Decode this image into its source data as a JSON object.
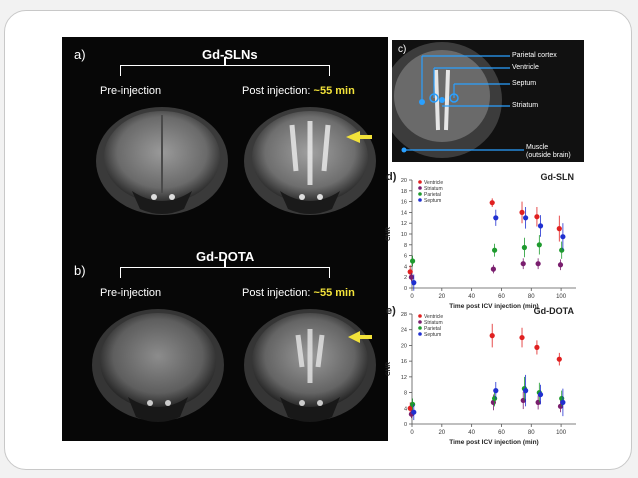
{
  "panel_a": {
    "label": "a)",
    "title": "Gd-SLNs",
    "pre": "Pre-injection",
    "post_prefix": "Post injection: ",
    "post_time": "~55 min"
  },
  "panel_b": {
    "label": "b)",
    "title": "Gd-DOTA",
    "pre": "Pre-injection",
    "post_prefix": "Post injection: ",
    "post_time": "~55 min"
  },
  "panel_c": {
    "label": "c)",
    "regions": [
      "Parietal cortex",
      "Ventricle",
      "Septum",
      "Striatum",
      "Muscle",
      "(outside brain)"
    ]
  },
  "colors": {
    "ventricle": "#e02020",
    "striatum": "#7a1e6e",
    "parietal": "#1e9a2e",
    "septum": "#2030d0",
    "arrow": "#f2e23a"
  },
  "chart_data": [
    {
      "type": "scatter",
      "panel": "d)",
      "title": "Gd-SLN",
      "xlabel": "Time post ICV injection (min)",
      "ylabel": "CNR",
      "xlim": [
        0,
        110
      ],
      "ylim": [
        0,
        20
      ],
      "xticks": [
        0,
        20,
        40,
        60,
        80,
        100
      ],
      "yticks": [
        0,
        2,
        4,
        6,
        8,
        10,
        12,
        14,
        16,
        18,
        20
      ],
      "series": [
        {
          "name": "Ventricle",
          "color": "#e02020",
          "x": [
            0,
            55,
            75,
            85,
            100
          ],
          "y": [
            3.0,
            15.8,
            14.0,
            13.2,
            11.0
          ],
          "err": [
            1.2,
            0.8,
            2.0,
            1.8,
            2.4
          ]
        },
        {
          "name": "Striatum",
          "color": "#7a1e6e",
          "x": [
            0,
            55,
            75,
            85,
            100
          ],
          "y": [
            2.0,
            3.5,
            4.5,
            4.5,
            4.3
          ],
          "err": [
            0.8,
            0.8,
            1.0,
            1.0,
            1.0
          ]
        },
        {
          "name": "Parietal",
          "color": "#1e9a2e",
          "x": [
            0,
            55,
            75,
            85,
            100
          ],
          "y": [
            5.0,
            7.0,
            7.5,
            8.0,
            7.0
          ],
          "err": [
            1.0,
            1.2,
            1.8,
            1.8,
            1.6
          ]
        },
        {
          "name": "Septum",
          "color": "#2030d0",
          "x": [
            0,
            55,
            75,
            85,
            100
          ],
          "y": [
            1.0,
            13.0,
            13.0,
            11.5,
            9.5
          ],
          "err": [
            1.5,
            1.5,
            2.0,
            2.0,
            2.5
          ]
        }
      ]
    },
    {
      "type": "scatter",
      "panel": "e)",
      "title": "Gd-DOTA",
      "xlabel": "Time post ICV injection (min)",
      "ylabel": "CNR",
      "xlim": [
        0,
        110
      ],
      "ylim": [
        0,
        28
      ],
      "xticks": [
        0,
        20,
        40,
        60,
        80,
        100
      ],
      "yticks": [
        0,
        4,
        8,
        12,
        16,
        20,
        24,
        28
      ],
      "series": [
        {
          "name": "Ventricle",
          "color": "#e02020",
          "x": [
            0,
            55,
            75,
            85,
            100
          ],
          "y": [
            4.0,
            22.5,
            22.0,
            19.5,
            16.5
          ],
          "err": [
            1.5,
            3.0,
            2.5,
            1.8,
            1.6
          ]
        },
        {
          "name": "Striatum",
          "color": "#7a1e6e",
          "x": [
            0,
            55,
            75,
            85,
            100
          ],
          "y": [
            2.5,
            5.5,
            6.0,
            5.5,
            4.5
          ],
          "err": [
            1.0,
            2.0,
            2.2,
            1.8,
            1.5
          ]
        },
        {
          "name": "Parietal",
          "color": "#1e9a2e",
          "x": [
            0,
            55,
            75,
            85,
            100
          ],
          "y": [
            5.0,
            6.5,
            9.0,
            8.0,
            6.5
          ],
          "err": [
            1.5,
            2.0,
            3.0,
            2.5,
            2.0
          ]
        },
        {
          "name": "Septum",
          "color": "#2030d0",
          "x": [
            0,
            55,
            75,
            85,
            100
          ],
          "y": [
            3.0,
            8.5,
            8.5,
            7.5,
            5.5
          ],
          "err": [
            2.0,
            2.2,
            4.0,
            2.5,
            3.5
          ]
        }
      ]
    }
  ]
}
